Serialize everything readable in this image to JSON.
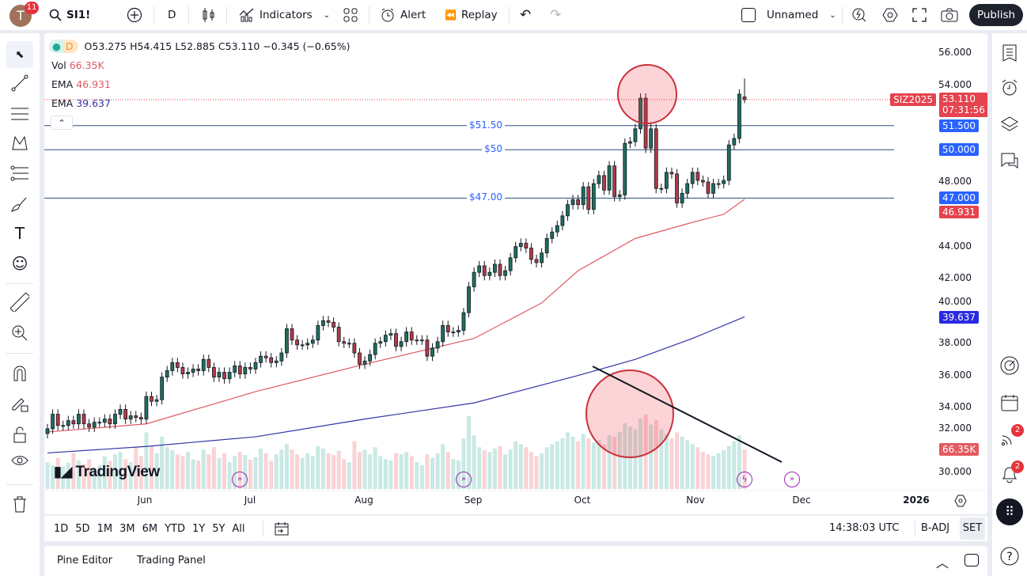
{
  "topbar": {
    "avatar_letter": "T",
    "avatar_badge": "11",
    "symbol": "SI1!",
    "interval": "D",
    "indicators_label": "Indicators",
    "alert_label": "Alert",
    "replay_label": "Replay",
    "layout_name": "Unnamed",
    "publish_label": "Publish"
  },
  "legend": {
    "interval": "D",
    "ohlc": "O53.275 H54.415 L52.885 C53.110 −0.345 (−0.65%)",
    "vol_label": "Vol",
    "vol_value": "66.35K",
    "ema1_label": "EMA",
    "ema1_value": "46.931",
    "ema2_label": "EMA",
    "ema2_value": "39.637"
  },
  "hlines": [
    {
      "price": 51.5,
      "label": "$51.50",
      "tag": "51.500"
    },
    {
      "price": 50,
      "label": "$50",
      "tag": "50.000"
    },
    {
      "price": 47,
      "label": "$47.00",
      "tag": "47.000"
    }
  ],
  "price_tags": {
    "contract": "SIZ2025",
    "last": "53.110",
    "countdown": "07:31:56",
    "ema1": "46.931",
    "ema2": "39.637",
    "volume": "66.35K"
  },
  "colors": {
    "up": "#22ab94",
    "down": "#f23645",
    "body_up": "#1e6f5c",
    "body_down": "#b23b47",
    "ema1": "#e05a63",
    "ema2": "#3434a8",
    "hline": "#2962ff",
    "vol_up": "#c9e9e4",
    "vol_down": "#f9d3d5"
  },
  "chart_data": {
    "type": "candlestick",
    "symbol": "SI1!",
    "ylim": [
      29.5,
      57
    ],
    "y_ticks": [
      "56.000",
      "54.000",
      "48.000",
      "44.000",
      "42.000",
      "40.000",
      "38.000",
      "36.000",
      "34.000",
      "32.000",
      "30.000"
    ],
    "x_ticks": [
      "Jun",
      "Jul",
      "Aug",
      "Sep",
      "Oct",
      "Nov",
      "Dec",
      "2026"
    ],
    "last_candle": {
      "open": 53.275,
      "high": 54.415,
      "low": 52.885,
      "close": 53.11
    },
    "closes": [
      32.7,
      33.6,
      32.9,
      32.9,
      33.2,
      33.0,
      33.6,
      33.0,
      32.8,
      33.1,
      33.1,
      33.3,
      33.0,
      33.6,
      33.9,
      33.3,
      33.5,
      33.4,
      33.3,
      34.7,
      34.4,
      34.5,
      35.9,
      36.3,
      36.8,
      36.5,
      36.1,
      36.2,
      36.4,
      36.3,
      37.0,
      36.5,
      35.9,
      36.2,
      35.8,
      36.2,
      36.6,
      36.1,
      36.5,
      36.4,
      36.8,
      37.2,
      37.1,
      36.8,
      36.9,
      37.4,
      38.9,
      38.2,
      37.9,
      37.9,
      38.0,
      38.2,
      39.1,
      39.4,
      39.3,
      39.0,
      38.1,
      38.0,
      38.0,
      37.4,
      36.7,
      36.9,
      37.3,
      38.0,
      38.1,
      38.5,
      38.6,
      37.8,
      38.1,
      38.7,
      38.2,
      38.2,
      38.2,
      37.2,
      37.7,
      38.1,
      39.1,
      38.7,
      38.7,
      38.8,
      39.9,
      41.5,
      42.4,
      42.8,
      42.2,
      42.4,
      42.9,
      42.2,
      42.5,
      43.3,
      44.0,
      44.2,
      43.9,
      43.2,
      43.0,
      43.6,
      44.5,
      44.9,
      45.3,
      45.9,
      46.6,
      46.9,
      46.6,
      47.7,
      46.3,
      47.9,
      48.4,
      47.5,
      49.0,
      47.1,
      47.2,
      50.4,
      50.5,
      51.3,
      53.2,
      50.1,
      51.3,
      47.6,
      47.6,
      48.6,
      48.5,
      46.7,
      47.3,
      47.9,
      48.6,
      48.1,
      48.0,
      47.3,
      47.9,
      47.9,
      48.1,
      50.3,
      50.7,
      53.45,
      53.11
    ],
    "volume_k": [
      45,
      40,
      52,
      38,
      44,
      60,
      48,
      42,
      50,
      36,
      40,
      55,
      47,
      58,
      62,
      50,
      45,
      70,
      55,
      95,
      72,
      60,
      88,
      70,
      65,
      58,
      55,
      62,
      50,
      48,
      66,
      58,
      70,
      52,
      60,
      45,
      55,
      62,
      57,
      49,
      53,
      68,
      60,
      47,
      58,
      66,
      75,
      66,
      58,
      52,
      60,
      55,
      72,
      68,
      60,
      57,
      64,
      50,
      45,
      80,
      62,
      66,
      58,
      70,
      55,
      50,
      48,
      60,
      58,
      62,
      55,
      45,
      40,
      58,
      52,
      60,
      75,
      62,
      50,
      48,
      85,
      122,
      90,
      70,
      65,
      62,
      68,
      72,
      58,
      66,
      80,
      75,
      70,
      62,
      55,
      60,
      70,
      75,
      80,
      85,
      95,
      88,
      80,
      92,
      85,
      78,
      82,
      75,
      90,
      88,
      96,
      110,
      105,
      100,
      118,
      125,
      108,
      115,
      100,
      92,
      85,
      95,
      88,
      82,
      75,
      70,
      62,
      58,
      55,
      60,
      65,
      72,
      80,
      90,
      66.35
    ],
    "ema_fast": [
      [
        0,
        32.5
      ],
      [
        19,
        33.0
      ],
      [
        40,
        35.0
      ],
      [
        61,
        36.7
      ],
      [
        82,
        38.3
      ],
      [
        95,
        40.5
      ],
      [
        102,
        42.5
      ],
      [
        113,
        44.5
      ],
      [
        124,
        45.5
      ],
      [
        130,
        46.0
      ],
      [
        134,
        46.931
      ]
    ],
    "ema_slow": [
      [
        0,
        31.2
      ],
      [
        19,
        31.6
      ],
      [
        40,
        32.2
      ],
      [
        61,
        33.3
      ],
      [
        82,
        34.3
      ],
      [
        102,
        36.0
      ],
      [
        113,
        37.0
      ],
      [
        124,
        38.3
      ],
      [
        134,
        39.637
      ]
    ]
  },
  "timeframes": [
    "1D",
    "5D",
    "1M",
    "3M",
    "6M",
    "YTD",
    "1Y",
    "5Y",
    "All"
  ],
  "status": {
    "clock": "14:38:03 UTC",
    "adj": "B-ADJ",
    "session": "SET"
  },
  "bottom_tabs": [
    "Pine Editor",
    "Trading Panel"
  ],
  "watermark": "TradingView",
  "right_badges": {
    "stream": "2",
    "alerts": "2"
  }
}
